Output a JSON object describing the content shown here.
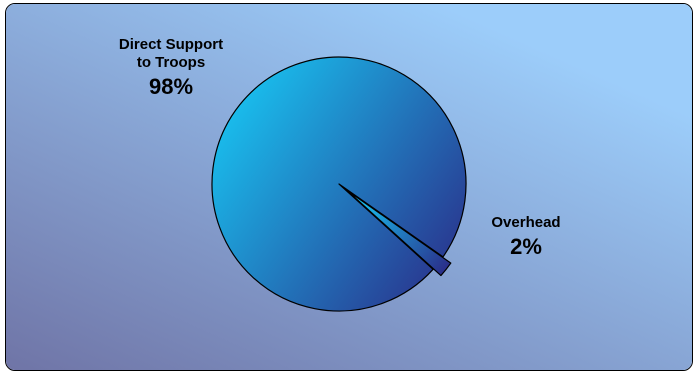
{
  "chart_data": {
    "type": "pie",
    "slices": [
      {
        "label_lines": [
          "Direct Support",
          "to Troops"
        ],
        "value": 98,
        "value_label": "98%"
      },
      {
        "label_lines": [
          "Overhead"
        ],
        "value": 2,
        "value_label": "2%"
      }
    ],
    "exploded_slice": "Overhead",
    "colors": {
      "background_start": "#6f74a6",
      "background_end": "#9ccdfa",
      "pie_light": "#18c8f4",
      "pie_dark": "#2a2f8a",
      "outline": "#000000"
    }
  }
}
